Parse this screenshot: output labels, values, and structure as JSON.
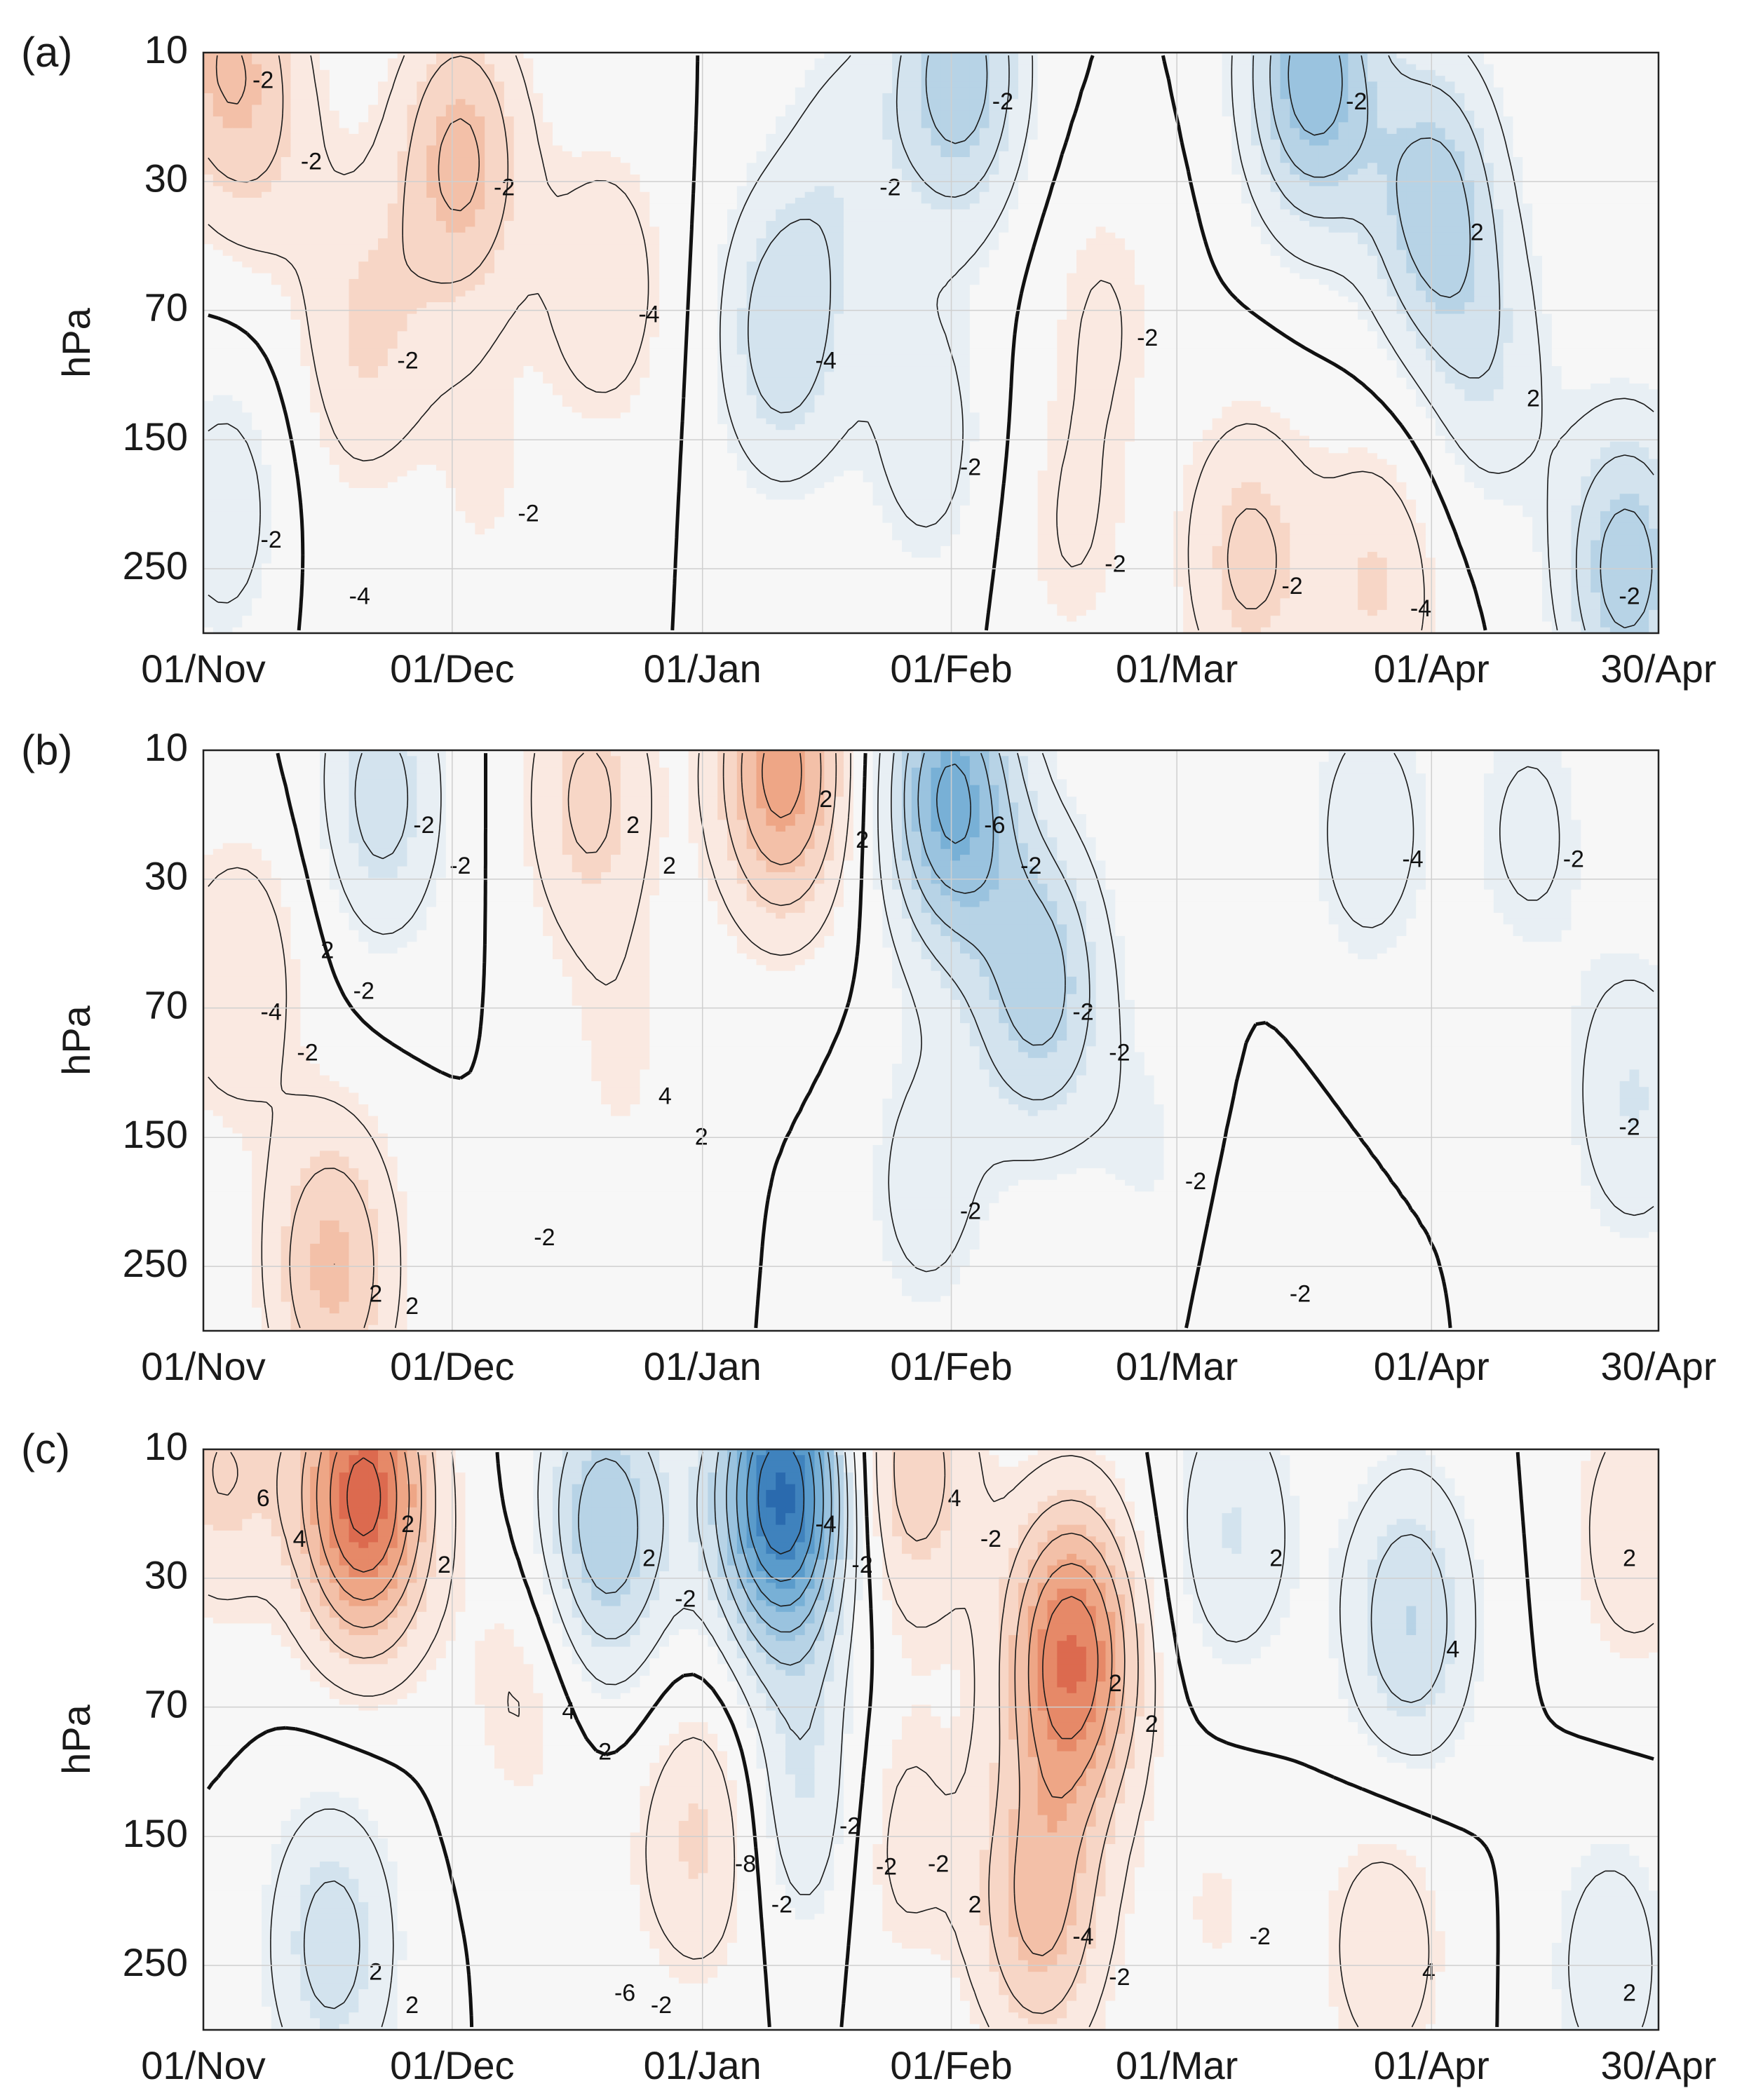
{
  "chart_data": [
    {
      "type": "heatmap",
      "panel_label": "(a)",
      "ylabel": "hPa",
      "xlabel": "",
      "x_ticks": [
        "01/Nov",
        "01/Dec",
        "01/Jan",
        "01/Feb",
        "01/Mar",
        "01/Apr",
        "30/Apr"
      ],
      "y_ticks": [
        "10",
        "30",
        "70",
        "150",
        "250"
      ],
      "x_range_days": [
        0,
        181
      ],
      "y_range_levels": [
        10,
        300
      ],
      "colormap": "diverging red (positive) - white - blue (negative)",
      "contour_interval": 1,
      "contour_labels": [
        "-2",
        "-2",
        "-2",
        "-2",
        "-4",
        "-2",
        "-2",
        "-4",
        "-4",
        "-2",
        "-2",
        "-2",
        "-2",
        "-2",
        "-2",
        "-4",
        "-2",
        "2",
        "2",
        "-2"
      ],
      "anomalies": [
        {
          "day": 2,
          "level": 10,
          "value": 2.5
        },
        {
          "day": 8,
          "level": 20,
          "value": 1.2
        },
        {
          "day": 32,
          "level": 25,
          "value": 3.2
        },
        {
          "day": 20,
          "level": 80,
          "value": 1.8
        },
        {
          "day": 50,
          "level": 60,
          "value": 1.6
        },
        {
          "day": 35,
          "level": 180,
          "value": 0.8
        },
        {
          "day": 3,
          "level": 200,
          "value": -1.5
        },
        {
          "day": 14,
          "level": 250,
          "value": 0.3
        },
        {
          "day": 72,
          "level": 80,
          "value": -2.6
        },
        {
          "day": 80,
          "level": 25,
          "value": -1.2
        },
        {
          "day": 94,
          "level": 12,
          "value": -3.6
        },
        {
          "day": 90,
          "level": 150,
          "value": -1.4
        },
        {
          "day": 112,
          "level": 70,
          "value": 1.0
        },
        {
          "day": 108,
          "level": 220,
          "value": 1.0
        },
        {
          "day": 130,
          "level": 240,
          "value": 2.2
        },
        {
          "day": 146,
          "level": 260,
          "value": 1.8
        },
        {
          "day": 138,
          "level": 12,
          "value": -4.6
        },
        {
          "day": 153,
          "level": 35,
          "value": -3.4
        },
        {
          "day": 160,
          "level": 100,
          "value": -1.5
        },
        {
          "day": 177,
          "level": 250,
          "value": -3.5
        }
      ]
    },
    {
      "type": "heatmap",
      "panel_label": "(b)",
      "ylabel": "hPa",
      "xlabel": "",
      "x_ticks": [
        "01/Nov",
        "01/Dec",
        "01/Jan",
        "01/Feb",
        "01/Mar",
        "01/Apr",
        "30/Apr"
      ],
      "y_ticks": [
        "10",
        "30",
        "70",
        "150",
        "250"
      ],
      "x_range_days": [
        0,
        181
      ],
      "y_range_levels": [
        10,
        300
      ],
      "colormap": "diverging red (positive) - white - blue (negative)",
      "contour_interval": 1,
      "contour_labels": [
        "-2",
        "2",
        "2",
        "2",
        "4",
        "2",
        "-4",
        "-6",
        "-2",
        "-2",
        "-2",
        "-2",
        "-4",
        "-2",
        "-2",
        "-2",
        "-2",
        "-2",
        "2",
        "2",
        "2",
        "2",
        "-2",
        "-2",
        "-2"
      ],
      "anomalies": [
        {
          "day": 22,
          "level": 15,
          "value": -2.4
        },
        {
          "day": 10,
          "level": 40,
          "value": 0.4
        },
        {
          "day": 48,
          "level": 15,
          "value": 2.2
        },
        {
          "day": 72,
          "level": 12,
          "value": 4.4
        },
        {
          "day": 52,
          "level": 100,
          "value": 0.8
        },
        {
          "day": 16,
          "level": 250,
          "value": 3.0
        },
        {
          "day": 3,
          "level": 60,
          "value": 1.5
        },
        {
          "day": 93,
          "level": 15,
          "value": -5.2
        },
        {
          "day": 104,
          "level": 60,
          "value": -3.4
        },
        {
          "day": 90,
          "level": 180,
          "value": -1.4
        },
        {
          "day": 118,
          "level": 160,
          "value": -0.8
        },
        {
          "day": 131,
          "level": 250,
          "value": 0.6
        },
        {
          "day": 145,
          "level": 20,
          "value": -1.5
        },
        {
          "day": 165,
          "level": 20,
          "value": -1.2
        },
        {
          "day": 178,
          "level": 120,
          "value": -1.8
        },
        {
          "day": 37,
          "level": 200,
          "value": 0.0
        }
      ]
    },
    {
      "type": "heatmap",
      "panel_label": "(c)",
      "ylabel": "hPa",
      "xlabel": "",
      "x_ticks": [
        "01/Nov",
        "01/Dec",
        "01/Jan",
        "01/Feb",
        "01/Mar",
        "01/Apr",
        "30/Apr"
      ],
      "y_ticks": [
        "10",
        "30",
        "70",
        "150",
        "250"
      ],
      "x_range_days": [
        0,
        181
      ],
      "y_range_levels": [
        10,
        300
      ],
      "colormap": "diverging red (positive) - white - blue (negative)",
      "contour_interval": 1,
      "contour_labels": [
        "2",
        "6",
        "4",
        "2",
        "2",
        "-4",
        "-2",
        "-8",
        "-6",
        "4",
        "2",
        "-4",
        "-2",
        "-2",
        "2",
        "4",
        "4",
        "2",
        "2",
        "2",
        "4",
        "2",
        "2",
        "-2",
        "-2",
        "-2",
        "-2",
        "-2",
        "-2",
        "2",
        "-2",
        "2"
      ],
      "anomalies": [
        {
          "day": 20,
          "level": 15,
          "value": 6.4
        },
        {
          "day": 2,
          "level": 12,
          "value": 2.0
        },
        {
          "day": 40,
          "level": 60,
          "value": 1.2
        },
        {
          "day": 16,
          "level": 230,
          "value": -2.4
        },
        {
          "day": 50,
          "level": 20,
          "value": -3.8
        },
        {
          "day": 72,
          "level": 15,
          "value": -8.0
        },
        {
          "day": 75,
          "level": 120,
          "value": -2.0
        },
        {
          "day": 62,
          "level": 150,
          "value": 2.0
        },
        {
          "day": 47,
          "level": 250,
          "value": 0.3
        },
        {
          "day": 88,
          "level": 12,
          "value": 2.6
        },
        {
          "day": 108,
          "level": 50,
          "value": 5.8
        },
        {
          "day": 104,
          "level": 200,
          "value": 3.2
        },
        {
          "day": 86,
          "level": 150,
          "value": 1.4
        },
        {
          "day": 126,
          "level": 200,
          "value": 0.8
        },
        {
          "day": 128,
          "level": 20,
          "value": -1.8
        },
        {
          "day": 150,
          "level": 40,
          "value": -2.8
        },
        {
          "day": 147,
          "level": 230,
          "value": 1.6
        },
        {
          "day": 178,
          "level": 20,
          "value": 1.6
        },
        {
          "day": 175,
          "level": 250,
          "value": -1.5
        }
      ]
    }
  ]
}
